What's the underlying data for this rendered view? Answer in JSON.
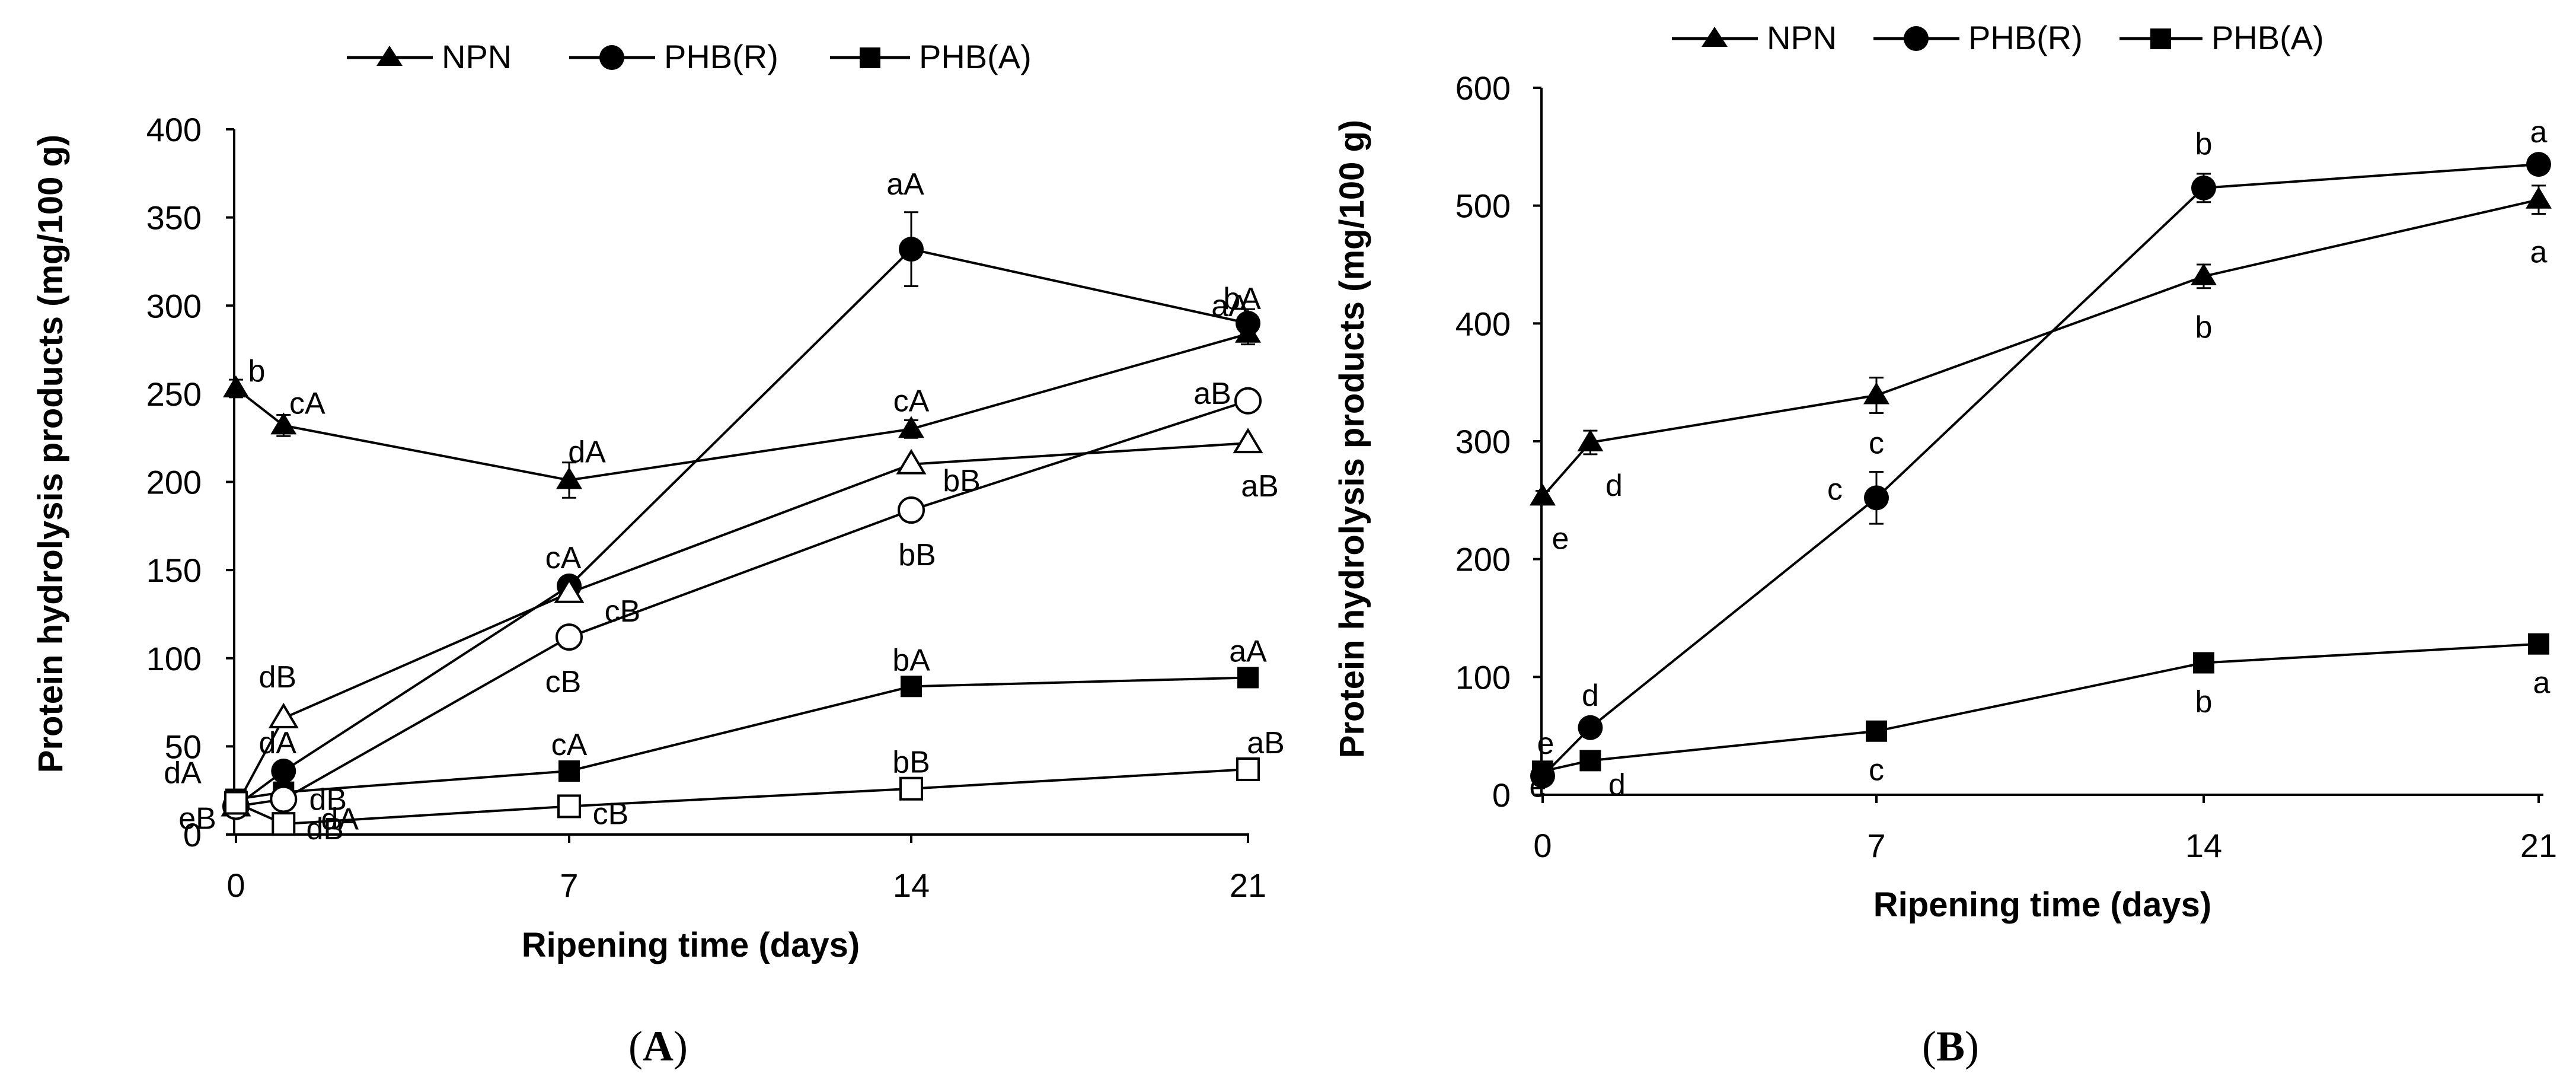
{
  "chart_data": [
    {
      "type": "line",
      "panel_label": "(A)",
      "panel_label_parts": {
        "open": "(",
        "letter": "A",
        "close": ")"
      },
      "xlabel": "Ripening time (days)",
      "ylabel": "Protein hydrolysis products (mg/100 g)",
      "x_ticks": [
        0,
        7,
        14,
        21
      ],
      "x_tick_labels": [
        "0",
        "7",
        "14",
        "21"
      ],
      "y_ticks": [
        0,
        50,
        100,
        150,
        200,
        250,
        300,
        350,
        400
      ],
      "y_tick_labels": [
        "0",
        "50",
        "100",
        "150",
        "200",
        "250",
        "300",
        "350",
        "400"
      ],
      "xlim": [
        0,
        21
      ],
      "ylim": [
        0,
        400
      ],
      "legend": {
        "position": "top"
      },
      "legend_entries": [
        "NPN",
        "PHB(R)",
        "PHB(A)"
      ],
      "series": [
        {
          "name": "NPN",
          "marker": "triangle",
          "filled": true,
          "in_legend": true,
          "x": [
            0,
            1,
            7,
            14,
            21
          ],
          "values": [
            253,
            232,
            201,
            230,
            284
          ],
          "errors": [
            5,
            6,
            10,
            5,
            6
          ],
          "labels": [
            "b",
            "cA",
            "dA",
            "cA",
            "aA"
          ]
        },
        {
          "name": "PHB(R)",
          "marker": "circle",
          "filled": true,
          "in_legend": true,
          "x": [
            0,
            1,
            7,
            14,
            21
          ],
          "values": [
            16,
            36,
            141,
            332,
            290
          ],
          "errors": [
            2,
            3,
            4,
            21,
            8
          ],
          "labels": [
            "eB",
            "dA",
            "cA",
            "aA",
            "bA"
          ]
        },
        {
          "name": "PHB(A)",
          "marker": "square",
          "filled": true,
          "in_legend": true,
          "x": [
            0,
            1,
            7,
            14,
            21
          ],
          "values": [
            20,
            24,
            36,
            84,
            89
          ],
          "errors": [
            1,
            1,
            1,
            2,
            2
          ],
          "labels": [
            "dA",
            "dA",
            "cA",
            "bA",
            "aA"
          ]
        },
        {
          "name": "NPN (open)",
          "marker": "triangle",
          "filled": false,
          "in_legend": false,
          "x": [
            0,
            1,
            7,
            14,
            21
          ],
          "values": [
            16,
            66,
            137,
            210,
            222
          ],
          "errors": [
            0,
            0,
            0,
            0,
            0
          ],
          "labels": [
            "",
            "dB",
            "cB",
            "bB",
            "aB"
          ]
        },
        {
          "name": "PHB(R) (open)",
          "marker": "circle",
          "filled": false,
          "in_legend": false,
          "x": [
            0,
            1,
            7,
            14,
            21
          ],
          "values": [
            16,
            20,
            112,
            184,
            246
          ],
          "errors": [
            0,
            0,
            0,
            0,
            0
          ],
          "labels": [
            "",
            "dB",
            "cB",
            "bB",
            "aB"
          ]
        },
        {
          "name": "PHB(A) (open)",
          "marker": "square",
          "filled": false,
          "in_legend": false,
          "x": [
            0,
            1,
            7,
            14,
            21
          ],
          "values": [
            18,
            6,
            16,
            26,
            37
          ],
          "errors": [
            0,
            0,
            0,
            0,
            0
          ],
          "labels": [
            "",
            "dB",
            "cB",
            "bB",
            "aB"
          ]
        }
      ]
    },
    {
      "type": "line",
      "panel_label": "(B)",
      "panel_label_parts": {
        "open": "(",
        "letter": "B",
        "close": ")"
      },
      "xlabel": "Ripening time (days)",
      "ylabel": "Protein hydrolysis products (mg/100 g)",
      "x_ticks": [
        0,
        7,
        14,
        21
      ],
      "x_tick_labels": [
        "0",
        "7",
        "14",
        "21"
      ],
      "y_ticks": [
        0,
        100,
        200,
        300,
        400,
        500,
        600
      ],
      "y_tick_labels": [
        "0",
        "100",
        "200",
        "300",
        "400",
        "500",
        "600"
      ],
      "xlim": [
        0,
        21
      ],
      "ylim": [
        0,
        600
      ],
      "legend": {
        "position": "top"
      },
      "legend_entries": [
        "NPN",
        "PHB(R)",
        "PHB(A)"
      ],
      "series": [
        {
          "name": "NPN",
          "marker": "triangle",
          "filled": true,
          "in_legend": true,
          "x": [
            0,
            1,
            7,
            14,
            21
          ],
          "values": [
            253,
            299,
            339,
            440,
            505
          ],
          "errors": [
            5,
            10,
            15,
            10,
            12
          ],
          "labels": [
            "e",
            "d",
            "c",
            "b",
            "a"
          ]
        },
        {
          "name": "PHB(R)",
          "marker": "circle",
          "filled": true,
          "in_legend": true,
          "x": [
            0,
            1,
            7,
            14,
            21
          ],
          "values": [
            16,
            57,
            252,
            515,
            535
          ],
          "errors": [
            2,
            5,
            22,
            12,
            5
          ],
          "labels": [
            "e",
            "d",
            "c",
            "b",
            "a"
          ]
        },
        {
          "name": "PHB(A)",
          "marker": "square",
          "filled": true,
          "in_legend": true,
          "x": [
            0,
            1,
            7,
            14,
            21
          ],
          "values": [
            20,
            29,
            54,
            112,
            128
          ],
          "errors": [
            1,
            2,
            2,
            3,
            3
          ],
          "labels": [
            "e",
            "d",
            "c",
            "b",
            "a"
          ]
        }
      ]
    }
  ]
}
